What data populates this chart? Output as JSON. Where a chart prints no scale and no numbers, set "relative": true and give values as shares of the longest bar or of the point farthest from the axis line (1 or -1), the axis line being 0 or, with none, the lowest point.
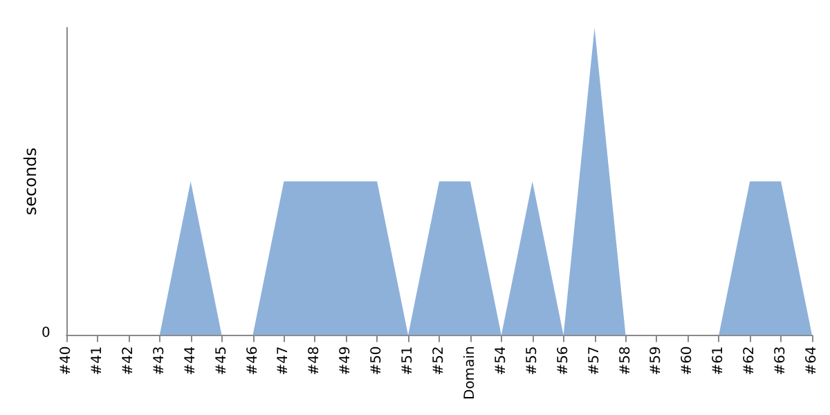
{
  "chart_data": {
    "type": "area",
    "ylabel": "seconds",
    "relative": true,
    "annotations": [
      "0"
    ],
    "categories": [
      "#40",
      "#41",
      "#42",
      "#43",
      "#44",
      "#45",
      "#46",
      "#47",
      "#48",
      "#49",
      "#50",
      "#51",
      "#52",
      "Domain",
      "#54",
      "#55",
      "#56",
      "#57",
      "#58",
      "#59",
      "#60",
      "#61",
      "#62",
      "#63",
      "#64"
    ],
    "series": [
      {
        "color": "#8eb1da",
        "values": [
          0,
          0,
          0,
          0,
          0.5,
          0,
          0,
          0.5,
          0.5,
          0.5,
          0.5,
          0,
          0.5,
          0.5,
          0,
          0.5,
          0,
          1,
          0,
          0,
          0,
          0,
          0.5,
          0.5,
          0
        ]
      }
    ],
    "grid": false
  }
}
